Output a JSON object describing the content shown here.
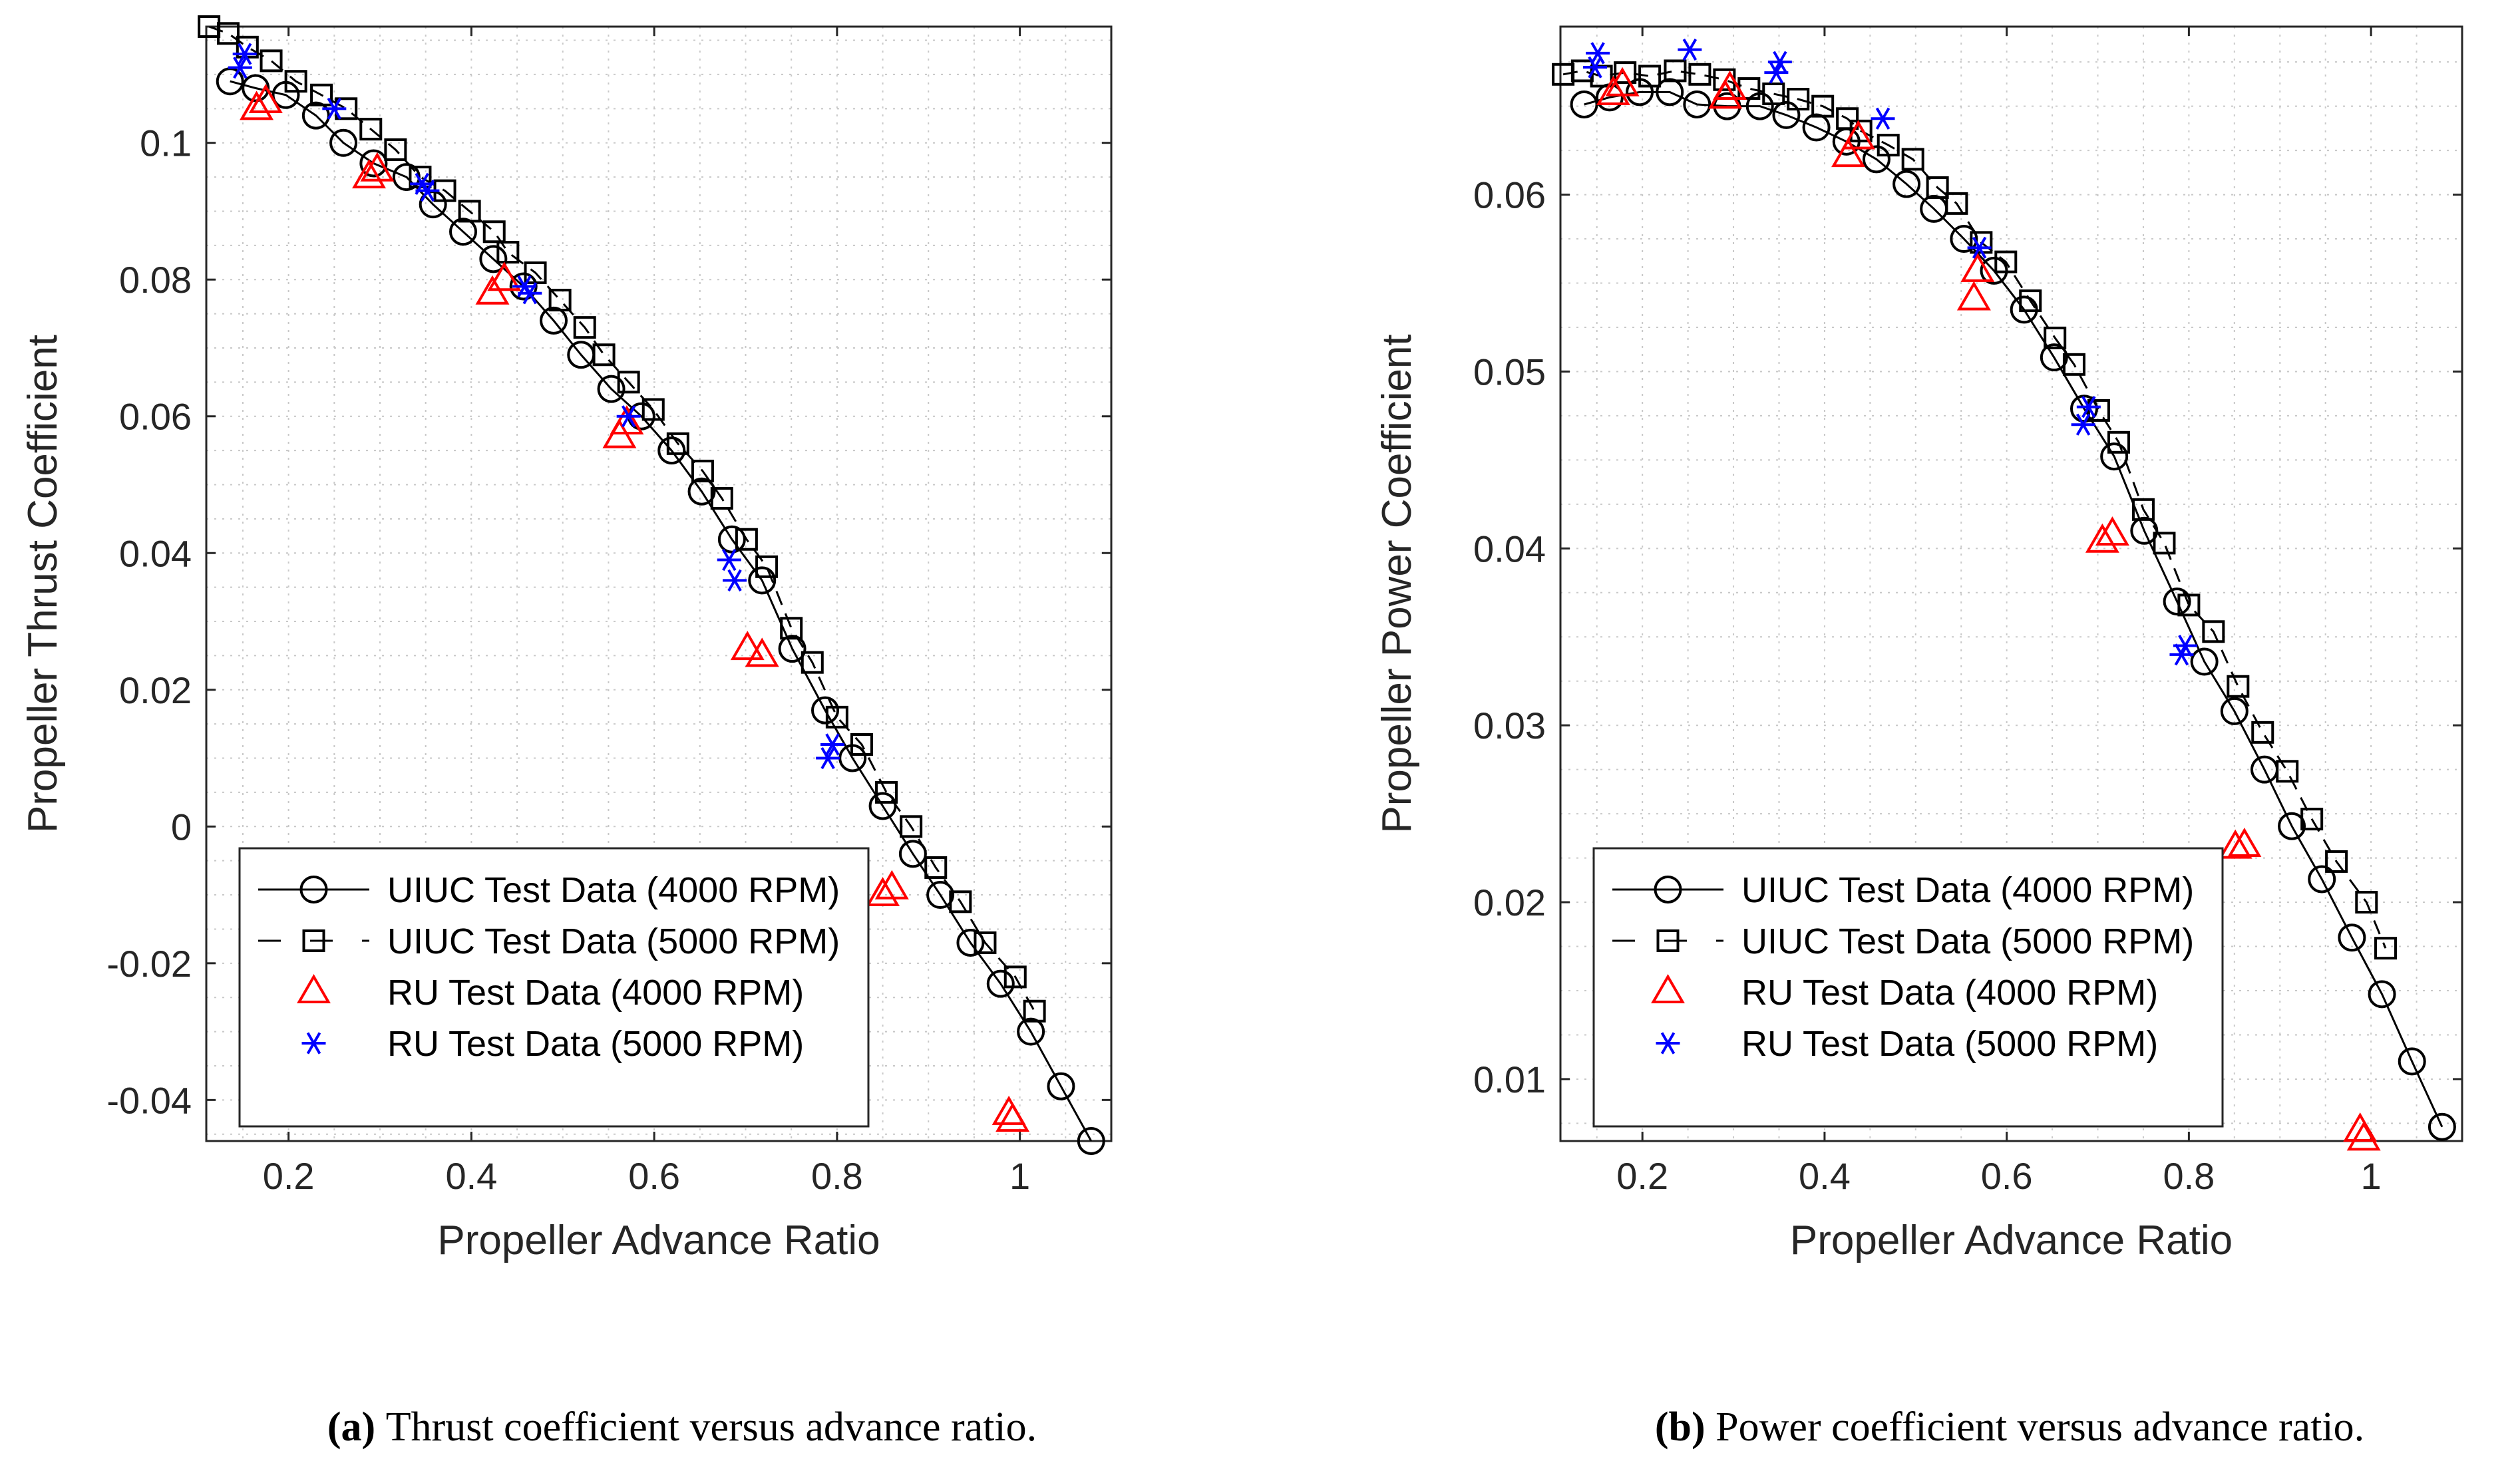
{
  "charts": [
    {
      "title": "Thrust coefficient versus advance ratio",
      "type": "scatter",
      "xlabel": "Propeller Advance Ratio",
      "ylabel": "Propeller Thrust Coefficient",
      "xlim": [
        0.11,
        1.1
      ],
      "ylim": [
        -0.046,
        0.117
      ],
      "xticks": [
        0.2,
        0.4,
        0.6,
        0.8,
        1
      ],
      "xtick_labels": [
        "0.2",
        "0.4",
        "0.6",
        "0.8",
        "1"
      ],
      "yticks": [
        -0.04,
        -0.02,
        0,
        0.02,
        0.04,
        0.06,
        0.08,
        0.1
      ],
      "ytick_labels": [
        "-0.04",
        "-0.02",
        "0",
        "0.02",
        "0.04",
        "0.06",
        "0.08",
        "0.1"
      ],
      "grid": true,
      "legend_position": "bottom-left",
      "caption_label": "(a)",
      "caption_text": "Thrust coefficient versus advance ratio.",
      "series": [
        {
          "name": "UIUC Test Data (4000 RPM)",
          "marker": "circle",
          "line": "solid",
          "color": "#000000",
          "x": [
            0.136,
            0.164,
            0.197,
            0.23,
            0.26,
            0.293,
            0.329,
            0.358,
            0.391,
            0.424,
            0.457,
            0.49,
            0.52,
            0.553,
            0.586,
            0.619,
            0.652,
            0.685,
            0.718,
            0.751,
            0.787,
            0.817,
            0.85,
            0.883,
            0.913,
            0.946,
            0.979,
            1.012,
            1.045,
            1.078
          ],
          "y": [
            0.109,
            0.108,
            0.107,
            0.104,
            0.1,
            0.097,
            0.095,
            0.091,
            0.087,
            0.083,
            0.079,
            0.074,
            0.069,
            0.064,
            0.06,
            0.055,
            0.049,
            0.042,
            0.036,
            0.026,
            0.017,
            0.01,
            0.003,
            -0.004,
            -0.01,
            -0.017,
            -0.023,
            -0.03,
            -0.038,
            -0.046
          ]
        },
        {
          "name": "UIUC Test Data (5000 RPM)",
          "marker": "square",
          "line": "dashed",
          "color": "#000000",
          "x": [
            0.113,
            0.134,
            0.155,
            0.181,
            0.208,
            0.236,
            0.263,
            0.29,
            0.317,
            0.344,
            0.371,
            0.398,
            0.425,
            0.44,
            0.47,
            0.497,
            0.524,
            0.545,
            0.572,
            0.599,
            0.626,
            0.653,
            0.674,
            0.701,
            0.723,
            0.75,
            0.773,
            0.8,
            0.827,
            0.854,
            0.881,
            0.908,
            0.935,
            0.962,
            0.995,
            1.016
          ],
          "y": [
            0.117,
            0.116,
            0.114,
            0.112,
            0.109,
            0.107,
            0.105,
            0.102,
            0.099,
            0.095,
            0.093,
            0.09,
            0.087,
            0.084,
            0.081,
            0.077,
            0.073,
            0.069,
            0.065,
            0.061,
            0.056,
            0.052,
            0.048,
            0.042,
            0.038,
            0.029,
            0.024,
            0.016,
            0.012,
            0.005,
            0.0,
            -0.006,
            -0.011,
            -0.017,
            -0.022,
            -0.027
          ]
        },
        {
          "name": "RU Test Data (4000 RPM)",
          "marker": "triangle",
          "line": "none",
          "color": "#ff0000",
          "x": [
            0.165,
            0.175,
            0.288,
            0.297,
            0.423,
            0.436,
            0.562,
            0.57,
            0.702,
            0.718,
            0.85,
            0.86,
            0.988,
            0.992
          ],
          "y": [
            0.105,
            0.106,
            0.095,
            0.096,
            0.078,
            0.08,
            0.057,
            0.059,
            0.026,
            0.025,
            -0.01,
            -0.009,
            -0.042,
            -0.043
          ]
        },
        {
          "name": "RU Test Data (5000 RPM)",
          "marker": "asterisk",
          "line": "none",
          "color": "#0000ff",
          "x": [
            0.147,
            0.152,
            0.25,
            0.346,
            0.352,
            0.458,
            0.464,
            0.572,
            0.682,
            0.688,
            0.79,
            0.795
          ],
          "y": [
            0.111,
            0.113,
            0.105,
            0.094,
            0.093,
            0.079,
            0.078,
            0.06,
            0.039,
            0.036,
            0.01,
            0.012
          ]
        }
      ]
    },
    {
      "title": "Power coefficient versus advance ratio",
      "type": "scatter",
      "xlabel": "Propeller Advance Ratio",
      "ylabel": "Propeller Power Coefficient",
      "xlim": [
        0.11,
        1.1
      ],
      "ylim": [
        0.0065,
        0.0695
      ],
      "xticks": [
        0.2,
        0.4,
        0.6,
        0.8,
        1
      ],
      "xtick_labels": [
        "0.2",
        "0.4",
        "0.6",
        "0.8",
        "1"
      ],
      "yticks": [
        0.01,
        0.02,
        0.03,
        0.04,
        0.05,
        0.06
      ],
      "ytick_labels": [
        "0.01",
        "0.02",
        "0.03",
        "0.04",
        "0.05",
        "0.06"
      ],
      "grid": true,
      "legend_position": "bottom-left",
      "caption_label": "(b)",
      "caption_text": "Power coefficient versus advance ratio.",
      "series": [
        {
          "name": "UIUC Test Data (4000 RPM)",
          "marker": "circle",
          "line": "solid",
          "color": "#000000",
          "x": [
            0.136,
            0.164,
            0.197,
            0.23,
            0.26,
            0.293,
            0.329,
            0.358,
            0.391,
            0.424,
            0.457,
            0.49,
            0.52,
            0.553,
            0.586,
            0.619,
            0.652,
            0.685,
            0.718,
            0.751,
            0.787,
            0.817,
            0.85,
            0.883,
            0.913,
            0.946,
            0.979,
            1.012,
            1.045,
            1.078
          ],
          "y": [
            0.0651,
            0.0655,
            0.0658,
            0.0658,
            0.0651,
            0.065,
            0.065,
            0.0645,
            0.0638,
            0.063,
            0.062,
            0.0606,
            0.0592,
            0.0575,
            0.0557,
            0.0535,
            0.0508,
            0.0479,
            0.0452,
            0.041,
            0.037,
            0.0336,
            0.0308,
            0.0275,
            0.0243,
            0.0213,
            0.018,
            0.0148,
            0.011,
            0.0073
          ]
        },
        {
          "name": "UIUC Test Data (5000 RPM)",
          "marker": "square",
          "line": "dashed",
          "color": "#000000",
          "x": [
            0.113,
            0.134,
            0.155,
            0.181,
            0.208,
            0.236,
            0.263,
            0.29,
            0.317,
            0.344,
            0.371,
            0.398,
            0.425,
            0.44,
            0.47,
            0.497,
            0.524,
            0.545,
            0.572,
            0.599,
            0.626,
            0.653,
            0.674,
            0.701,
            0.723,
            0.75,
            0.773,
            0.8,
            0.827,
            0.854,
            0.881,
            0.908,
            0.935,
            0.962,
            0.995,
            1.016
          ],
          "y": [
            0.0668,
            0.067,
            0.0667,
            0.0669,
            0.0667,
            0.067,
            0.0668,
            0.0665,
            0.066,
            0.0657,
            0.0654,
            0.065,
            0.0643,
            0.0636,
            0.0628,
            0.062,
            0.0604,
            0.0595,
            0.0573,
            0.0562,
            0.054,
            0.0519,
            0.0504,
            0.0478,
            0.046,
            0.0422,
            0.0403,
            0.0368,
            0.0353,
            0.0322,
            0.0296,
            0.0274,
            0.0247,
            0.0223,
            0.02,
            0.0174
          ]
        },
        {
          "name": "RU Test Data (4000 RPM)",
          "marker": "triangle",
          "line": "none",
          "color": "#ff0000",
          "x": [
            0.168,
            0.178,
            0.291,
            0.296,
            0.426,
            0.437,
            0.564,
            0.568,
            0.705,
            0.716,
            0.851,
            0.861,
            0.988,
            0.992
          ],
          "y": [
            0.0657,
            0.0662,
            0.0655,
            0.066,
            0.0622,
            0.0632,
            0.0541,
            0.0557,
            0.0404,
            0.0408,
            0.0231,
            0.0232,
            0.0071,
            0.0066
          ]
        },
        {
          "name": "RU Test Data (5000 RPM)",
          "marker": "asterisk",
          "line": "none",
          "color": "#0000ff",
          "x": [
            0.148,
            0.151,
            0.252,
            0.347,
            0.351,
            0.464,
            0.57,
            0.684,
            0.69,
            0.792,
            0.796
          ],
          "y": [
            0.0672,
            0.068,
            0.0682,
            0.0669,
            0.0675,
            0.0643,
            0.057,
            0.047,
            0.048,
            0.034,
            0.0345
          ]
        }
      ]
    }
  ]
}
